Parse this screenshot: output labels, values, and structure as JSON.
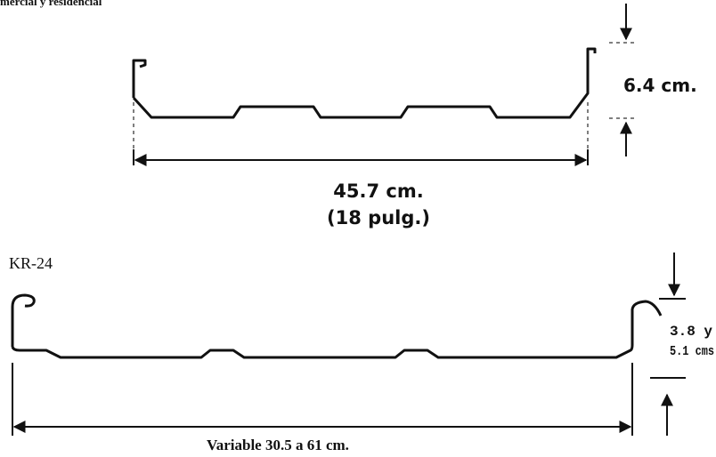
{
  "header": {
    "title": "mercial y residencial"
  },
  "profiles": [
    {
      "height": "6.4 cm.",
      "width": "45.7 cm.",
      "width_alt": "(18 pulg.)"
    },
    {
      "name": "KR-24",
      "height_line1": "3.8 y",
      "height_line2": "5.1 cms",
      "width": "Variable 30.5 a 61 cm."
    }
  ]
}
